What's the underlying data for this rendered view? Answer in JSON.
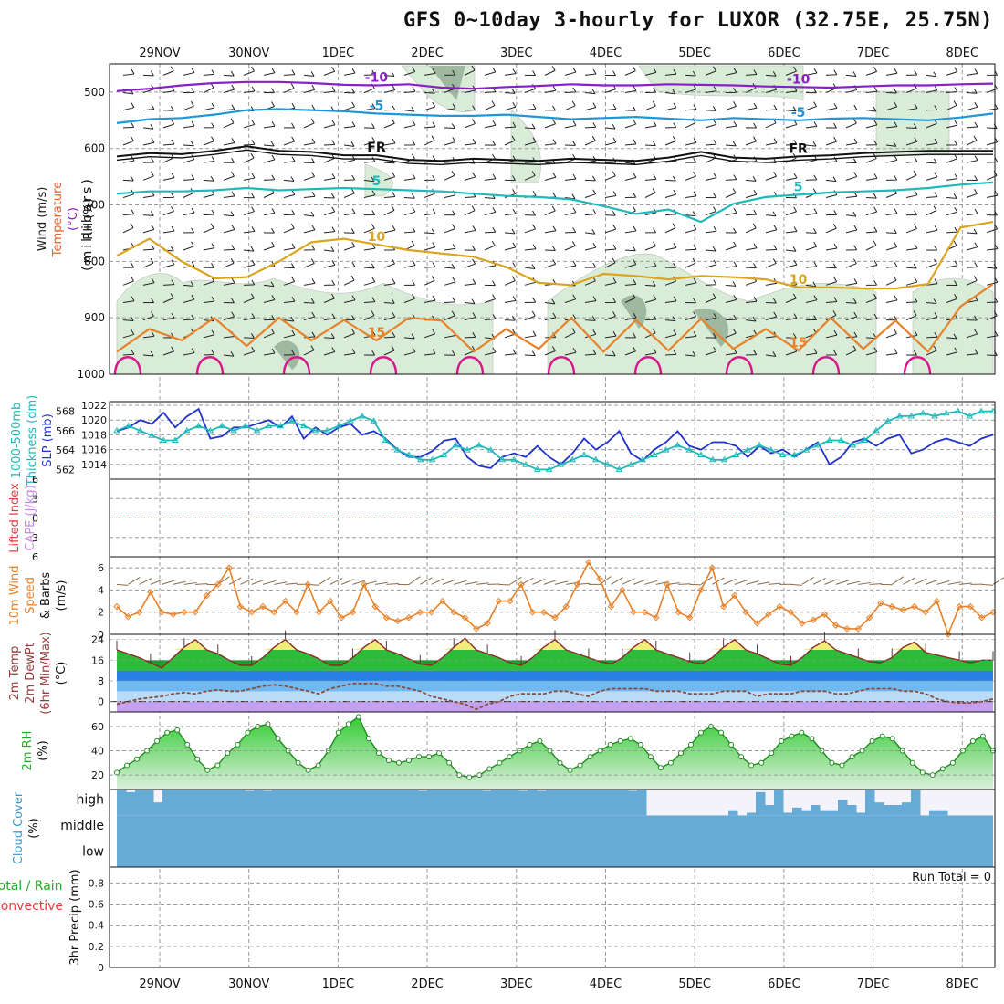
{
  "title": "GFS 0~10day 3-hourly for LUXOR (32.75E, 25.75N)",
  "date_labels": [
    "29NOV",
    "30NOV",
    "1DEC",
    "2DEC",
    "3DEC",
    "4DEC",
    "5DEC",
    "6DEC",
    "7DEC",
    "8DEC"
  ],
  "colors": {
    "purple": "#8a1fc8",
    "blue": "#1e96d8",
    "teal": "#20b8b8",
    "gold": "#d9a520",
    "orange": "#e8822a",
    "magenta": "#d8178a",
    "black": "#111111",
    "rh_fill": "#d8ecd8",
    "rh_dark": "#9fb8a0",
    "cloud": "#66aad6",
    "temp_yellow": "#f2ec7a",
    "temp_green": "#2dbb3a",
    "dew_blue": "#2b80e6",
    "lilac": "#c6a0f0",
    "sea_green": "#7fd27f"
  },
  "chart_data": [
    {
      "type": "line",
      "name": "cross-section",
      "ylabel": "(millibars)",
      "left_labels": [
        {
          "text": "Wind (m/s)",
          "color": "#222222"
        },
        {
          "text": "Temperature",
          "color": "#e8622a"
        },
        {
          "text": "(°C)",
          "color": "#8a1fc8"
        },
        {
          "text": "RH (%)",
          "color": "#111111"
        }
      ],
      "y_ticks": [
        500,
        600,
        700,
        800,
        900,
        1000
      ],
      "ylim": [
        1000,
        450
      ],
      "isotherms": [
        {
          "label": "-10",
          "color": "#8a1fc8",
          "levels": [
            498,
            494,
            488,
            484,
            482,
            482,
            484,
            487,
            488,
            486,
            492,
            494,
            491,
            489,
            486,
            488,
            488,
            486,
            487,
            488,
            490,
            491,
            492,
            490,
            488,
            488,
            486,
            485
          ]
        },
        {
          "label": "-5",
          "color": "#1e96d8",
          "levels": [
            555,
            548,
            546,
            540,
            532,
            530,
            532,
            534,
            538,
            540,
            542,
            542,
            540,
            544,
            548,
            546,
            544,
            547,
            550,
            546,
            548,
            550,
            547,
            546,
            548,
            550,
            545,
            538
          ]
        },
        {
          "label": "FR",
          "color": "#111111",
          "levels": [
            614,
            608,
            610,
            604,
            596,
            604,
            606,
            612,
            612,
            620,
            622,
            618,
            620,
            622,
            618,
            620,
            622,
            616,
            606,
            616,
            618,
            614,
            612,
            608,
            606,
            604,
            604,
            604
          ]
        },
        {
          "label": "5",
          "color": "#20b8b8",
          "levels": [
            680,
            676,
            676,
            674,
            670,
            674,
            672,
            670,
            672,
            674,
            676,
            680,
            684,
            686,
            690,
            702,
            716,
            708,
            730,
            698,
            686,
            682,
            678,
            676,
            674,
            670,
            664,
            660
          ]
        },
        {
          "label": "10",
          "color": "#d9a520",
          "levels": [
            790,
            760,
            800,
            830,
            828,
            800,
            766,
            760,
            770,
            780,
            786,
            792,
            810,
            838,
            842,
            822,
            826,
            832,
            826,
            828,
            832,
            846,
            846,
            848,
            848,
            840,
            740,
            730
          ]
        },
        {
          "label": "15",
          "color": "#e8822a",
          "levels": [
            960,
            920,
            940,
            900,
            950,
            900,
            940,
            904,
            940,
            900,
            905,
            960,
            920,
            955,
            900,
            960,
            904,
            958,
            902,
            955,
            920,
            958,
            900,
            955,
            905,
            960,
            880,
            840
          ]
        }
      ],
      "wind_barbs_present": true
    },
    {
      "type": "line",
      "name": "sea-level-pressure-and-thickness",
      "left_labels": [
        {
          "text": "1000-500mb",
          "color": "#20b8b8"
        },
        {
          "text": "Thickness (dm)",
          "color": "#20b8b8"
        },
        {
          "text": "SLP (mb)",
          "color": "#2233cc"
        }
      ],
      "left_ticks": [
        562,
        564,
        566,
        568
      ],
      "left_ylim": [
        561,
        569
      ],
      "right_ticks": [
        1014,
        1016,
        1018,
        1020,
        1022
      ],
      "right_ylim": [
        1012,
        1022.5
      ],
      "series": [
        {
          "axis": "right",
          "color": "#2233cc",
          "values": [
            1018.5,
            1019,
            1020,
            1019.5,
            1021,
            1019,
            1020.5,
            1021.5,
            1017.5,
            1017.8,
            1019,
            1019,
            1019.5,
            1020,
            1019,
            1020.5,
            1017.5,
            1019,
            1018,
            1019,
            1019.5,
            1018,
            1018.5,
            1017.5,
            1016,
            1015,
            1015,
            1015.8,
            1017.2,
            1017.5,
            1015,
            1013.8,
            1013.5,
            1015,
            1015.5,
            1015,
            1016.5,
            1015,
            1014,
            1015.5,
            1017.5,
            1016,
            1017,
            1018.5,
            1015.5,
            1014.5,
            1016,
            1017,
            1018.5,
            1016.5,
            1016,
            1017,
            1017,
            1016.5,
            1015,
            1016.5,
            1015.5,
            1016,
            1015,
            1016,
            1017,
            1014,
            1015,
            1017,
            1017.5,
            1016.5,
            1017.5,
            1018,
            1015.5,
            1016,
            1017,
            1017.5,
            1017,
            1016.5,
            1017.5,
            1018
          ]
        },
        {
          "axis": "left",
          "color": "#20b8b8",
          "values": [
            566,
            566.5,
            566,
            565.5,
            565,
            565,
            566,
            566.5,
            566,
            566.5,
            566,
            566.5,
            566,
            566.5,
            566.5,
            567,
            566.5,
            566,
            566,
            566.5,
            567,
            567.5,
            567,
            565,
            564,
            563.5,
            563,
            563,
            563.5,
            564.5,
            564,
            564.5,
            564,
            563,
            563,
            562.5,
            562,
            562,
            562.5,
            563,
            563.5,
            563,
            562.5,
            562,
            562.5,
            563,
            563.5,
            564,
            564.5,
            564,
            563.5,
            563,
            563,
            563.5,
            564,
            564.5,
            564,
            563.5,
            563.5,
            564,
            564.5,
            565,
            565,
            564.5,
            565,
            566,
            567,
            567.5,
            567.5,
            567.8,
            567.5,
            567.8,
            568,
            567.5,
            568,
            568
          ]
        }
      ]
    },
    {
      "type": "line",
      "name": "lifted-index-cape",
      "left_labels": [
        {
          "text": "Lifted Index",
          "color": "#e83c3c"
        },
        {
          "text": "CAPE (J/kg)",
          "color": "#c88ae8"
        }
      ],
      "y_ticks": [
        6,
        3,
        0,
        -3,
        -6
      ],
      "ylim": [
        -6,
        6
      ],
      "values": []
    },
    {
      "type": "line",
      "name": "10m-wind",
      "left_labels": [
        {
          "text": "10m Wind",
          "color": "#e8822a"
        },
        {
          "text": "Speed",
          "color": "#e8822a"
        },
        {
          "text": "& Barbs",
          "color": "#111111"
        },
        {
          "text": "(m/s)",
          "color": "#111111"
        }
      ],
      "y_ticks": [
        0,
        2,
        4,
        6
      ],
      "ylim": [
        0,
        7
      ],
      "values": [
        2.5,
        1.6,
        2,
        3.8,
        2,
        1.8,
        2,
        2,
        3.5,
        4.5,
        6,
        2.5,
        2,
        2.5,
        2,
        3,
        2,
        4.5,
        2,
        3,
        1.5,
        2,
        4.5,
        2.5,
        1.5,
        1.2,
        1.5,
        2,
        2,
        3,
        2,
        1.5,
        0.5,
        1,
        3,
        3,
        4.5,
        2,
        2,
        1.5,
        2.5,
        4.5,
        6.5,
        5,
        2.5,
        4,
        2,
        2,
        1.5,
        4.5,
        2,
        1.5,
        4,
        6,
        2.5,
        3.5,
        2,
        1,
        1.8,
        2.5,
        2,
        1,
        1.3,
        1.8,
        0.8,
        0.5,
        0.5,
        1.5,
        2.8,
        2.5,
        2.2,
        2.5,
        2,
        3,
        0,
        2.5,
        2.5,
        1.5,
        2
      ]
    },
    {
      "type": "area",
      "name": "2m-temperature",
      "left_labels": [
        {
          "text": "2m Temp",
          "color": "#9a3a3a"
        },
        {
          "text": "2m DewPt",
          "color": "#9a3a3a"
        },
        {
          "text": "(6hr Min/Max)",
          "color": "#9a3a3a"
        },
        {
          "text": "(°C)",
          "color": "#111111"
        }
      ],
      "y_ticks": [
        0,
        8,
        16,
        24
      ],
      "ylim": [
        -4,
        26
      ],
      "temp_values": [
        20,
        18.5,
        17,
        15,
        13,
        17,
        21,
        24,
        20,
        18.5,
        16,
        14,
        14,
        17,
        21,
        24,
        20,
        18.5,
        16.5,
        14,
        14,
        17,
        21,
        24,
        20,
        18.5,
        16.5,
        14.5,
        14,
        17,
        21,
        24.5,
        20,
        18.5,
        17,
        15,
        14,
        17,
        21,
        24,
        20,
        18.5,
        17,
        15.5,
        14.5,
        17,
        21,
        24,
        20,
        18.5,
        17,
        15.5,
        14.5,
        17,
        21,
        24,
        20,
        18.5,
        16.5,
        14.5,
        14,
        17,
        21,
        23.5,
        20,
        18.5,
        17,
        15.5,
        15,
        17,
        21,
        23,
        19,
        18,
        17,
        16,
        15,
        16,
        16
      ],
      "dewpt_values": [
        -1,
        0,
        1,
        1.5,
        2,
        3,
        3.5,
        3,
        4,
        4.5,
        4,
        4,
        5,
        6,
        6.5,
        6,
        5,
        4,
        3,
        5,
        6,
        7,
        7,
        7,
        6,
        6,
        5,
        4,
        2,
        1,
        0,
        -1,
        -3,
        -1,
        0,
        2,
        3,
        3,
        3,
        4,
        4,
        3,
        2,
        4,
        5,
        5,
        5,
        5,
        4,
        4,
        4,
        3,
        3,
        3,
        4,
        4,
        4,
        2,
        3,
        3,
        3,
        4,
        4,
        4,
        3,
        3,
        4,
        5,
        5,
        5,
        4,
        4,
        3,
        1,
        0,
        -0.5,
        -0.5,
        0,
        1
      ]
    },
    {
      "type": "area",
      "name": "2m-relative-humidity",
      "left_labels": [
        {
          "text": "2m RH",
          "color": "#22aa22"
        },
        {
          "text": "(%)",
          "color": "#111111"
        }
      ],
      "y_ticks": [
        20,
        40,
        60
      ],
      "ylim": [
        8,
        72
      ],
      "values": [
        22,
        28,
        33,
        40,
        48,
        55,
        57,
        45,
        33,
        24,
        28,
        38,
        45,
        55,
        60,
        62,
        50,
        40,
        30,
        24,
        28,
        40,
        55,
        62,
        68,
        50,
        38,
        32,
        30,
        32,
        35,
        35,
        38,
        30,
        20,
        18,
        20,
        25,
        30,
        35,
        40,
        45,
        48,
        40,
        30,
        24,
        28,
        35,
        40,
        45,
        48,
        50,
        45,
        35,
        26,
        30,
        38,
        45,
        55,
        60,
        55,
        45,
        35,
        28,
        30,
        38,
        48,
        52,
        55,
        50,
        40,
        30,
        28,
        35,
        40,
        48,
        52,
        50,
        40,
        30,
        22,
        20,
        25,
        30,
        40,
        48,
        52,
        40
      ]
    },
    {
      "type": "bar",
      "name": "cloud-cover",
      "left_labels": [
        {
          "text": "Cloud Cover",
          "color": "#3a98c8"
        },
        {
          "text": "(%)",
          "color": "#111111"
        }
      ],
      "row_labels": [
        "high",
        "middle",
        "low"
      ],
      "high_values": [
        100,
        90,
        100,
        100,
        50,
        100,
        100,
        100,
        100,
        100,
        100,
        100,
        100,
        100,
        95,
        100,
        95,
        100,
        100,
        100,
        100,
        100,
        100,
        100,
        100,
        100,
        100,
        100,
        100,
        100,
        100,
        100,
        100,
        95,
        100,
        100,
        100,
        100,
        100,
        100,
        95,
        100,
        100,
        100,
        95,
        100,
        95,
        100,
        100,
        100,
        100,
        100,
        100,
        100,
        100,
        100,
        95,
        100,
        0,
        0,
        0,
        0,
        0,
        0,
        0,
        0,
        0,
        20,
        0,
        10,
        90,
        40,
        100,
        10,
        30,
        20,
        40,
        20,
        20,
        60,
        40,
        10,
        100,
        50,
        40,
        40,
        50,
        100,
        0,
        20,
        20,
        0,
        0,
        0,
        0,
        0
      ],
      "middle_values": [
        100
      ],
      "low_values": [
        100
      ]
    },
    {
      "type": "bar",
      "name": "3hr-precipitation",
      "left_labels": [
        {
          "text": "Total / Rain",
          "color": "#22aa22"
        },
        {
          "text": "Convective",
          "color": "#e83c3c"
        },
        {
          "text": "3hr Precip (mm)",
          "color": "#111111"
        }
      ],
      "y_ticks": [
        0,
        0.2,
        0.4,
        0.6,
        0.8
      ],
      "ylim": [
        0,
        0.95
      ],
      "run_total_label": "Run Total = 0",
      "values": []
    }
  ]
}
